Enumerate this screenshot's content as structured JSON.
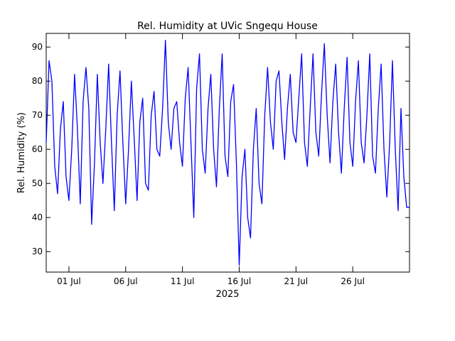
{
  "chart_data": {
    "type": "line",
    "title": "Rel. Humidity at UVic Sngequ House",
    "xlabel": "2025",
    "ylabel": "Rel. Humidity (%)",
    "xlim": [
      "2025-06-29 00:00",
      "2025-07-31 00:00"
    ],
    "ylim": [
      24,
      94
    ],
    "yticks": [
      30,
      40,
      50,
      60,
      70,
      80,
      90
    ],
    "xticks": [
      {
        "date": "2025-07-01",
        "label": "01 Jul"
      },
      {
        "date": "2025-07-06",
        "label": "06 Jul"
      },
      {
        "date": "2025-07-11",
        "label": "11 Jul"
      },
      {
        "date": "2025-07-16",
        "label": "16 Jul"
      },
      {
        "date": "2025-07-21",
        "label": "21 Jul"
      },
      {
        "date": "2025-07-26",
        "label": "26 Jul"
      }
    ],
    "grid": false,
    "line_color": "#0000ff",
    "series": [
      {
        "x": [
          "2025-06-29 00:00",
          "2025-06-29 06:00",
          "2025-06-29 12:00",
          "2025-06-29 18:00",
          "2025-06-30 00:00",
          "2025-06-30 06:00",
          "2025-06-30 12:00",
          "2025-06-30 18:00",
          "2025-07-01 00:00",
          "2025-07-01 06:00",
          "2025-07-01 12:00",
          "2025-07-01 18:00",
          "2025-07-02 00:00",
          "2025-07-02 06:00",
          "2025-07-02 12:00",
          "2025-07-02 18:00",
          "2025-07-03 00:00",
          "2025-07-03 06:00",
          "2025-07-03 12:00",
          "2025-07-03 18:00",
          "2025-07-04 00:00",
          "2025-07-04 06:00",
          "2025-07-04 12:00",
          "2025-07-04 18:00",
          "2025-07-05 00:00",
          "2025-07-05 06:00",
          "2025-07-05 12:00",
          "2025-07-05 18:00",
          "2025-07-06 00:00",
          "2025-07-06 06:00",
          "2025-07-06 12:00",
          "2025-07-06 18:00",
          "2025-07-07 00:00",
          "2025-07-07 06:00",
          "2025-07-07 12:00",
          "2025-07-07 18:00",
          "2025-07-08 00:00",
          "2025-07-08 06:00",
          "2025-07-08 12:00",
          "2025-07-08 18:00",
          "2025-07-09 00:00",
          "2025-07-09 06:00",
          "2025-07-09 12:00",
          "2025-07-09 18:00",
          "2025-07-10 00:00",
          "2025-07-10 06:00",
          "2025-07-10 12:00",
          "2025-07-10 18:00",
          "2025-07-11 00:00",
          "2025-07-11 06:00",
          "2025-07-11 12:00",
          "2025-07-11 18:00",
          "2025-07-12 00:00",
          "2025-07-12 06:00",
          "2025-07-12 12:00",
          "2025-07-12 18:00",
          "2025-07-13 00:00",
          "2025-07-13 06:00",
          "2025-07-13 12:00",
          "2025-07-13 18:00",
          "2025-07-14 00:00",
          "2025-07-14 06:00",
          "2025-07-14 12:00",
          "2025-07-14 18:00",
          "2025-07-15 00:00",
          "2025-07-15 06:00",
          "2025-07-15 12:00",
          "2025-07-15 18:00",
          "2025-07-16 00:00",
          "2025-07-16 06:00",
          "2025-07-16 12:00",
          "2025-07-16 18:00",
          "2025-07-17 00:00",
          "2025-07-17 06:00",
          "2025-07-17 12:00",
          "2025-07-17 18:00",
          "2025-07-18 00:00",
          "2025-07-18 06:00",
          "2025-07-18 12:00",
          "2025-07-18 18:00",
          "2025-07-19 00:00",
          "2025-07-19 06:00",
          "2025-07-19 12:00",
          "2025-07-19 18:00",
          "2025-07-20 00:00",
          "2025-07-20 06:00",
          "2025-07-20 12:00",
          "2025-07-20 18:00",
          "2025-07-21 00:00",
          "2025-07-21 06:00",
          "2025-07-21 12:00",
          "2025-07-21 18:00",
          "2025-07-22 00:00",
          "2025-07-22 06:00",
          "2025-07-22 12:00",
          "2025-07-22 18:00",
          "2025-07-23 00:00",
          "2025-07-23 06:00",
          "2025-07-23 12:00",
          "2025-07-23 18:00",
          "2025-07-24 00:00",
          "2025-07-24 06:00",
          "2025-07-24 12:00",
          "2025-07-24 18:00",
          "2025-07-25 00:00",
          "2025-07-25 06:00",
          "2025-07-25 12:00",
          "2025-07-25 18:00",
          "2025-07-26 00:00",
          "2025-07-26 06:00",
          "2025-07-26 12:00",
          "2025-07-26 18:00",
          "2025-07-27 00:00",
          "2025-07-27 06:00",
          "2025-07-27 12:00",
          "2025-07-27 18:00",
          "2025-07-28 00:00",
          "2025-07-28 06:00",
          "2025-07-28 12:00",
          "2025-07-28 18:00",
          "2025-07-29 00:00",
          "2025-07-29 06:00",
          "2025-07-29 12:00",
          "2025-07-29 18:00",
          "2025-07-30 00:00",
          "2025-07-30 06:00",
          "2025-07-30 12:00",
          "2025-07-30 18:00",
          "2025-07-31 00:00"
        ],
        "y": [
          62,
          86,
          80,
          55,
          47,
          66,
          74,
          52,
          45,
          60,
          82,
          66,
          44,
          74,
          84,
          72,
          38,
          56,
          82,
          62,
          50,
          66,
          85,
          62,
          42,
          70,
          83,
          62,
          44,
          60,
          80,
          63,
          45,
          68,
          75,
          50,
          48,
          70,
          77,
          60,
          58,
          72,
          92,
          68,
          60,
          72,
          74,
          62,
          55,
          75,
          84,
          62,
          40,
          78,
          88,
          60,
          53,
          72,
          82,
          60,
          49,
          72,
          88,
          58,
          52,
          74,
          79,
          56,
          26,
          52,
          60,
          40,
          34,
          60,
          72,
          50,
          44,
          70,
          84,
          68,
          60,
          80,
          83,
          68,
          57,
          72,
          82,
          65,
          62,
          75,
          88,
          62,
          55,
          72,
          88,
          65,
          58,
          76,
          91,
          70,
          56,
          74,
          85,
          65,
          53,
          72,
          87,
          62,
          55,
          74,
          86,
          62,
          56,
          70,
          88,
          58,
          53,
          72,
          85,
          60,
          46,
          62,
          86,
          60,
          42,
          72,
          52,
          43,
          43
        ]
      }
    ]
  }
}
